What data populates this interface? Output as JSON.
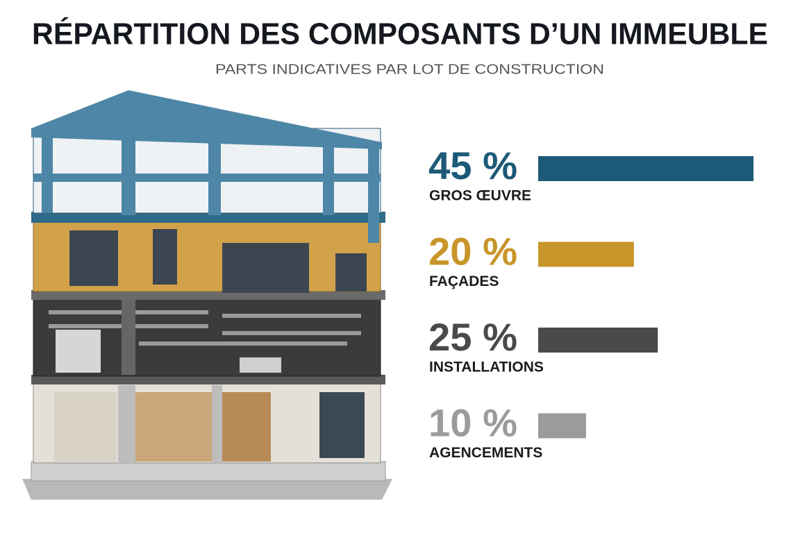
{
  "chart_data": {
    "type": "hbar-infographic",
    "title": "RÉPARTITION DES COMPOSANTS D’UN IMMEUBLE",
    "subtitle": "PARTS INDICATIVES PAR LOT DE CONSTRUCTION",
    "categories": [
      "GROS ŒUVRE",
      "FAÇADES",
      "INSTALLATIONS",
      "AGENCEMENTS"
    ],
    "values": [
      45,
      20,
      25,
      10
    ],
    "value_labels": [
      "45 %",
      "20 %",
      "25 %",
      "10 %"
    ],
    "colors": [
      "#1d5a78",
      "#c8952a",
      "#4a4a4c",
      "#9b9b9b"
    ]
  }
}
